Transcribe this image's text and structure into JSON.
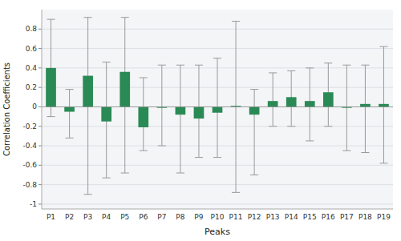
{
  "chart_data": {
    "type": "bar",
    "xlabel": "Peaks",
    "ylabel": "Correlation Coefficients",
    "categories": [
      "P1",
      "P2",
      "P3",
      "P4",
      "P5",
      "P6",
      "P7",
      "P8",
      "P9",
      "P10",
      "P11",
      "P12",
      "P13",
      "P14",
      "P15",
      "P16",
      "P17",
      "P18",
      "P19"
    ],
    "values": [
      0.4,
      -0.05,
      0.32,
      -0.15,
      0.36,
      -0.21,
      -0.01,
      -0.08,
      -0.12,
      -0.06,
      0.01,
      -0.08,
      0.06,
      0.1,
      0.06,
      0.15,
      -0.01,
      0.03,
      0.03
    ],
    "whisker_low": [
      -0.1,
      -0.32,
      -0.9,
      -0.73,
      -0.68,
      -0.45,
      -0.4,
      -0.68,
      -0.52,
      -0.52,
      -0.88,
      -0.7,
      -0.2,
      -0.2,
      -0.35,
      -0.2,
      -0.45,
      -0.47,
      -0.58
    ],
    "whisker_high": [
      0.9,
      0.18,
      0.92,
      0.46,
      0.92,
      0.3,
      0.43,
      0.43,
      0.43,
      0.5,
      0.88,
      0.18,
      0.35,
      0.37,
      0.4,
      0.45,
      0.43,
      0.43,
      0.62
    ],
    "color": "#2a8a55",
    "ylim": [
      -1.05,
      1.0
    ],
    "yticks": [
      -1,
      -0.8,
      -0.6,
      -0.4,
      -0.2,
      0,
      0.2,
      0.4,
      0.6,
      0.8
    ],
    "grid": true
  }
}
